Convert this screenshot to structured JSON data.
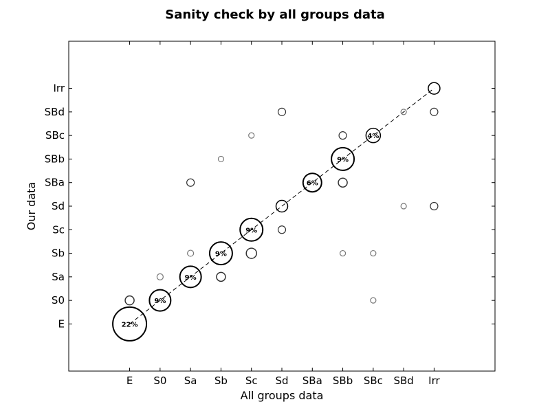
{
  "chart_data": {
    "type": "scatter",
    "title": "Sanity check by all groups data",
    "xlabel": "All groups data",
    "ylabel": "Our data",
    "categories": [
      "E",
      "S0",
      "Sa",
      "Sb",
      "Sc",
      "Sd",
      "SBa",
      "SBb",
      "SBc",
      "SBd",
      "Irr"
    ],
    "xlim": [
      -2,
      12
    ],
    "ylim": [
      -2,
      12
    ],
    "grid": false,
    "diagonal": "dashed",
    "points": [
      {
        "x": "E",
        "y": "E",
        "size": 24.5,
        "label": "22%"
      },
      {
        "x": "E",
        "y": "S0",
        "size": 6.5
      },
      {
        "x": "S0",
        "y": "S0",
        "size": 15.5,
        "label": "9%"
      },
      {
        "x": "S0",
        "y": "Sa",
        "size": 4.5
      },
      {
        "x": "Sa",
        "y": "Sa",
        "size": 15.5,
        "label": "9%"
      },
      {
        "x": "Sa",
        "y": "Sb",
        "size": 4.5
      },
      {
        "x": "Sa",
        "y": "SBa",
        "size": 5.5
      },
      {
        "x": "Sb",
        "y": "Sa",
        "size": 6.5
      },
      {
        "x": "Sb",
        "y": "Sb",
        "size": 16.5,
        "label": "9%"
      },
      {
        "x": "Sb",
        "y": "SBb",
        "size": 4
      },
      {
        "x": "Sc",
        "y": "Sb",
        "size": 7.5
      },
      {
        "x": "Sc",
        "y": "Sc",
        "size": 16.5,
        "label": "9%"
      },
      {
        "x": "Sc",
        "y": "SBc",
        "size": 4
      },
      {
        "x": "Sd",
        "y": "Sc",
        "size": 5.5
      },
      {
        "x": "Sd",
        "y": "Sd",
        "size": 8.5
      },
      {
        "x": "Sd",
        "y": "SBd",
        "size": 5.5
      },
      {
        "x": "SBa",
        "y": "SBa",
        "size": 13.5,
        "label": "6%"
      },
      {
        "x": "SBb",
        "y": "Sb",
        "size": 4
      },
      {
        "x": "SBb",
        "y": "SBa",
        "size": 6.5
      },
      {
        "x": "SBb",
        "y": "SBb",
        "size": 16.5,
        "label": "9%"
      },
      {
        "x": "SBb",
        "y": "SBc",
        "size": 5.5
      },
      {
        "x": "SBc",
        "y": "S0",
        "size": 4
      },
      {
        "x": "SBc",
        "y": "Sb",
        "size": 4
      },
      {
        "x": "SBc",
        "y": "SBc",
        "size": 10.5,
        "label": "4%"
      },
      {
        "x": "SBd",
        "y": "Sd",
        "size": 4
      },
      {
        "x": "SBd",
        "y": "SBd",
        "size": 4
      },
      {
        "x": "Irr",
        "y": "Sd",
        "size": 5.5
      },
      {
        "x": "Irr",
        "y": "SBd",
        "size": 5.5
      },
      {
        "x": "Irr",
        "y": "Irr",
        "size": 8.5
      }
    ]
  }
}
